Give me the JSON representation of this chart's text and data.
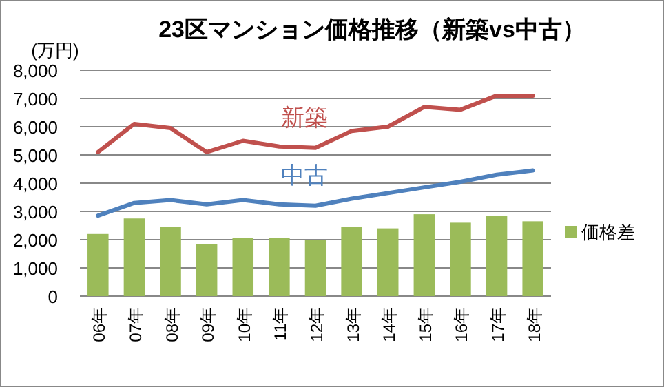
{
  "chart_data": {
    "type": "bar",
    "title": "23区マンション価格推移（新築vs中古）",
    "ylabel": "(万円)",
    "categories": [
      "06年",
      "07年",
      "08年",
      "09年",
      "10年",
      "11年",
      "12年",
      "13年",
      "14年",
      "15年",
      "16年",
      "17年",
      "18年"
    ],
    "series": [
      {
        "name": "価格差",
        "color": "#9bbb59",
        "values": [
          2200,
          2750,
          2450,
          1850,
          2050,
          2050,
          2000,
          2450,
          2400,
          2900,
          2600,
          2850,
          2650
        ]
      },
      {
        "name": "新築",
        "type": "line",
        "color": "#c0504d",
        "values": [
          5100,
          6100,
          5950,
          5100,
          5500,
          5300,
          5250,
          5850,
          6000,
          6700,
          6600,
          7100,
          7100
        ]
      },
      {
        "name": "中古",
        "type": "line",
        "color": "#4f81bd",
        "values": [
          2850,
          3300,
          3400,
          3250,
          3400,
          3250,
          3200,
          3450,
          3650,
          3850,
          4050,
          4300,
          4450
        ]
      }
    ],
    "ylim": [
      0,
      8000
    ],
    "yticks": [
      0,
      {
        "value": 1000,
        "label": "1,000"
      },
      {
        "value": 2000,
        "label": "2,000"
      },
      {
        "value": 3000,
        "label": "3,000"
      },
      {
        "value": 4000,
        "label": "4,000"
      },
      {
        "value": 5000,
        "label": "5,000"
      },
      {
        "value": 6000,
        "label": "6,000"
      },
      {
        "value": 7000,
        "label": "7,000"
      },
      {
        "value": 8000,
        "label": "8,000"
      }
    ],
    "grid": "y",
    "legend": "right",
    "marker": "none",
    "line_style": "solid"
  }
}
